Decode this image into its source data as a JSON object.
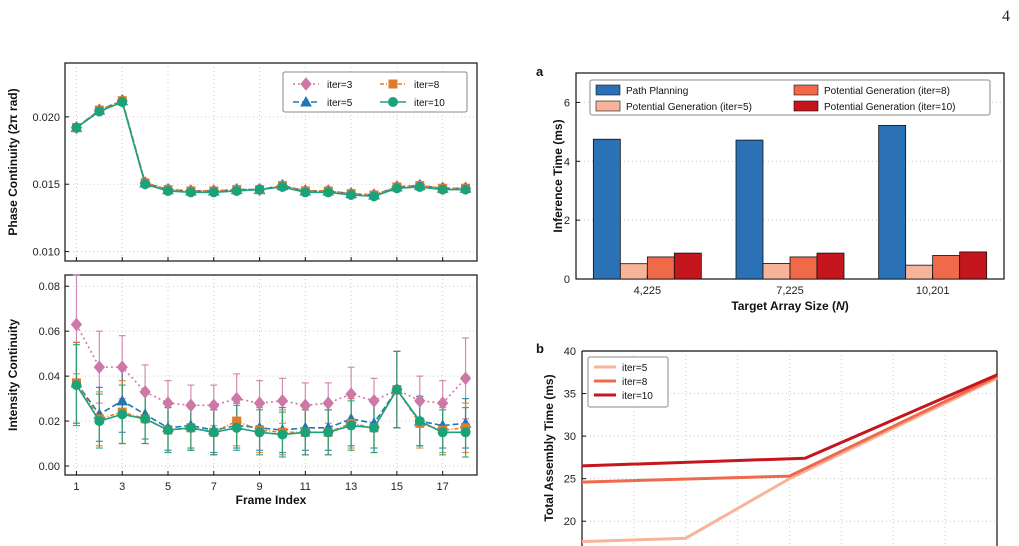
{
  "page_number": "4",
  "colors": {
    "iter3": "#cc79a7",
    "iter5": "#1f77b4",
    "iter8": "#e07b2a",
    "iter10": "#1aa37a",
    "path_planning": "#2a72b5",
    "potgen5": "#f7b49b",
    "potgen8": "#f06a4a",
    "potgen10": "#c4161c",
    "line5": "#f7b49b",
    "line8": "#ee6a4c",
    "line10": "#c4161c"
  },
  "chart_data": [
    {
      "type": "line",
      "panel": "top-left",
      "title": "",
      "ylabel": "Phase Continuity (2π rad)",
      "xlabel": "",
      "x": [
        1,
        2,
        3,
        4,
        5,
        6,
        7,
        8,
        9,
        10,
        11,
        12,
        13,
        14,
        15,
        16,
        17,
        18
      ],
      "xlim": [
        0.5,
        18.5
      ],
      "ylim": [
        0.0093,
        0.024
      ],
      "yticks": [
        "0.010",
        "0.015",
        "0.020"
      ],
      "ytick_values": [
        0.01,
        0.015,
        0.02
      ],
      "legend_position": "upper-right",
      "series": [
        {
          "name": "iter=3",
          "values": [
            0.0192,
            0.0205,
            0.0212,
            0.0151,
            0.0146,
            0.0145,
            0.0145,
            0.0146,
            0.0146,
            0.0149,
            0.0145,
            0.0145,
            0.0143,
            0.0142,
            0.0148,
            0.0149,
            0.0147,
            0.0147
          ]
        },
        {
          "name": "iter=5",
          "values": [
            0.0192,
            0.0205,
            0.0212,
            0.0151,
            0.0146,
            0.0145,
            0.0145,
            0.0146,
            0.0146,
            0.0149,
            0.0145,
            0.0145,
            0.0143,
            0.0142,
            0.0148,
            0.0149,
            0.0147,
            0.0147
          ]
        },
        {
          "name": "iter=8",
          "values": [
            0.0192,
            0.0205,
            0.0212,
            0.0151,
            0.0146,
            0.0145,
            0.0145,
            0.0146,
            0.0146,
            0.0149,
            0.0145,
            0.0145,
            0.0143,
            0.0142,
            0.0148,
            0.0149,
            0.0147,
            0.0147
          ]
        },
        {
          "name": "iter=10",
          "values": [
            0.0192,
            0.0204,
            0.0211,
            0.015,
            0.0145,
            0.0144,
            0.0144,
            0.0145,
            0.0146,
            0.0148,
            0.0144,
            0.0144,
            0.0142,
            0.0141,
            0.0147,
            0.0148,
            0.0146,
            0.0146
          ]
        }
      ]
    },
    {
      "type": "line",
      "panel": "bottom-left",
      "title": "",
      "ylabel": "Intensity Continuity",
      "xlabel": "Frame Index",
      "x": [
        1,
        2,
        3,
        4,
        5,
        6,
        7,
        8,
        9,
        10,
        11,
        12,
        13,
        14,
        15,
        16,
        17,
        18
      ],
      "xlim": [
        0.5,
        18.5
      ],
      "ylim": [
        -0.004,
        0.085
      ],
      "xticks": [
        "1",
        "3",
        "5",
        "7",
        "9",
        "11",
        "13",
        "15",
        "17"
      ],
      "xtick_values": [
        1,
        3,
        5,
        7,
        9,
        11,
        13,
        15,
        17
      ],
      "yticks": [
        "0.00",
        "0.02",
        "0.04",
        "0.06",
        "0.08"
      ],
      "ytick_values": [
        0.0,
        0.02,
        0.04,
        0.06,
        0.08
      ],
      "series": [
        {
          "name": "iter=3",
          "values": [
            0.063,
            0.044,
            0.044,
            0.033,
            0.028,
            0.027,
            0.027,
            0.03,
            0.028,
            0.029,
            0.027,
            0.028,
            0.032,
            0.029,
            0.034,
            0.029,
            0.028,
            0.039
          ],
          "err": [
            0.022,
            0.016,
            0.014,
            0.012,
            0.01,
            0.009,
            0.009,
            0.011,
            0.01,
            0.01,
            0.01,
            0.009,
            0.012,
            0.01,
            0.017,
            0.011,
            0.01,
            0.018
          ]
        },
        {
          "name": "iter=5",
          "values": [
            0.037,
            0.023,
            0.029,
            0.023,
            0.017,
            0.018,
            0.016,
            0.018,
            0.017,
            0.016,
            0.017,
            0.017,
            0.021,
            0.019,
            0.034,
            0.02,
            0.018,
            0.019
          ],
          "err": [
            0.018,
            0.012,
            0.014,
            0.011,
            0.01,
            0.01,
            0.01,
            0.01,
            0.01,
            0.01,
            0.01,
            0.01,
            0.012,
            0.011,
            0.017,
            0.011,
            0.01,
            0.011
          ]
        },
        {
          "name": "iter=8",
          "values": [
            0.037,
            0.021,
            0.024,
            0.021,
            0.016,
            0.017,
            0.015,
            0.02,
            0.016,
            0.015,
            0.015,
            0.015,
            0.019,
            0.017,
            0.034,
            0.019,
            0.016,
            0.017
          ],
          "err": [
            0.018,
            0.012,
            0.014,
            0.011,
            0.01,
            0.01,
            0.01,
            0.011,
            0.01,
            0.01,
            0.01,
            0.01,
            0.011,
            0.011,
            0.017,
            0.011,
            0.01,
            0.011
          ]
        },
        {
          "name": "iter=10",
          "values": [
            0.036,
            0.02,
            0.023,
            0.021,
            0.016,
            0.017,
            0.015,
            0.017,
            0.015,
            0.014,
            0.015,
            0.015,
            0.018,
            0.017,
            0.034,
            0.02,
            0.015,
            0.015
          ],
          "err": [
            0.018,
            0.012,
            0.013,
            0.011,
            0.01,
            0.01,
            0.01,
            0.01,
            0.01,
            0.01,
            0.01,
            0.01,
            0.011,
            0.011,
            0.017,
            0.011,
            0.01,
            0.011
          ]
        }
      ]
    },
    {
      "type": "bar",
      "panel": "a",
      "title": "",
      "ylabel": "Inference Time (ms)",
      "xlabel": "Target Array Size (N)",
      "xlabel_main": "Target Array Size (",
      "xlabel_var": "N",
      "xlabel_end": ")",
      "categories": [
        "4,225",
        "7,225",
        "10,201"
      ],
      "ylim": [
        0,
        7
      ],
      "yticks": [
        "0",
        "2",
        "4",
        "6"
      ],
      "ytick_values": [
        0,
        2,
        4,
        6
      ],
      "legend_position": "top",
      "series": [
        {
          "name": "Path Planning",
          "values": [
            4.75,
            4.72,
            5.22
          ]
        },
        {
          "name": "Potential Generation (iter=5)",
          "values": [
            0.52,
            0.53,
            0.47
          ]
        },
        {
          "name": "Potential Generation (iter=8)",
          "values": [
            0.75,
            0.75,
            0.8
          ]
        },
        {
          "name": "Potential Generation (iter=10)",
          "values": [
            0.88,
            0.88,
            0.92
          ]
        }
      ]
    },
    {
      "type": "line",
      "panel": "b",
      "title": "",
      "ylabel": "Total Assembly Time (ms)",
      "xlabel": "",
      "xlim": [
        0,
        8
      ],
      "ylim": [
        16.5,
        40
      ],
      "yticks": [
        "20",
        "25",
        "30",
        "35",
        "40"
      ],
      "ytick_values": [
        20,
        25,
        30,
        35,
        40
      ],
      "legend_position": "upper-left",
      "series": [
        {
          "name": "iter=5",
          "x": [
            0,
            2,
            4,
            8
          ],
          "values": [
            17.6,
            18.0,
            25.0,
            36.8
          ]
        },
        {
          "name": "iter=8",
          "x": [
            0,
            4,
            8
          ],
          "values": [
            24.6,
            25.3,
            37.0
          ]
        },
        {
          "name": "iter=10",
          "x": [
            0,
            4.3,
            8
          ],
          "values": [
            26.5,
            27.4,
            37.2
          ]
        }
      ]
    }
  ],
  "panel_labels": {
    "a": "a",
    "b": "b"
  }
}
